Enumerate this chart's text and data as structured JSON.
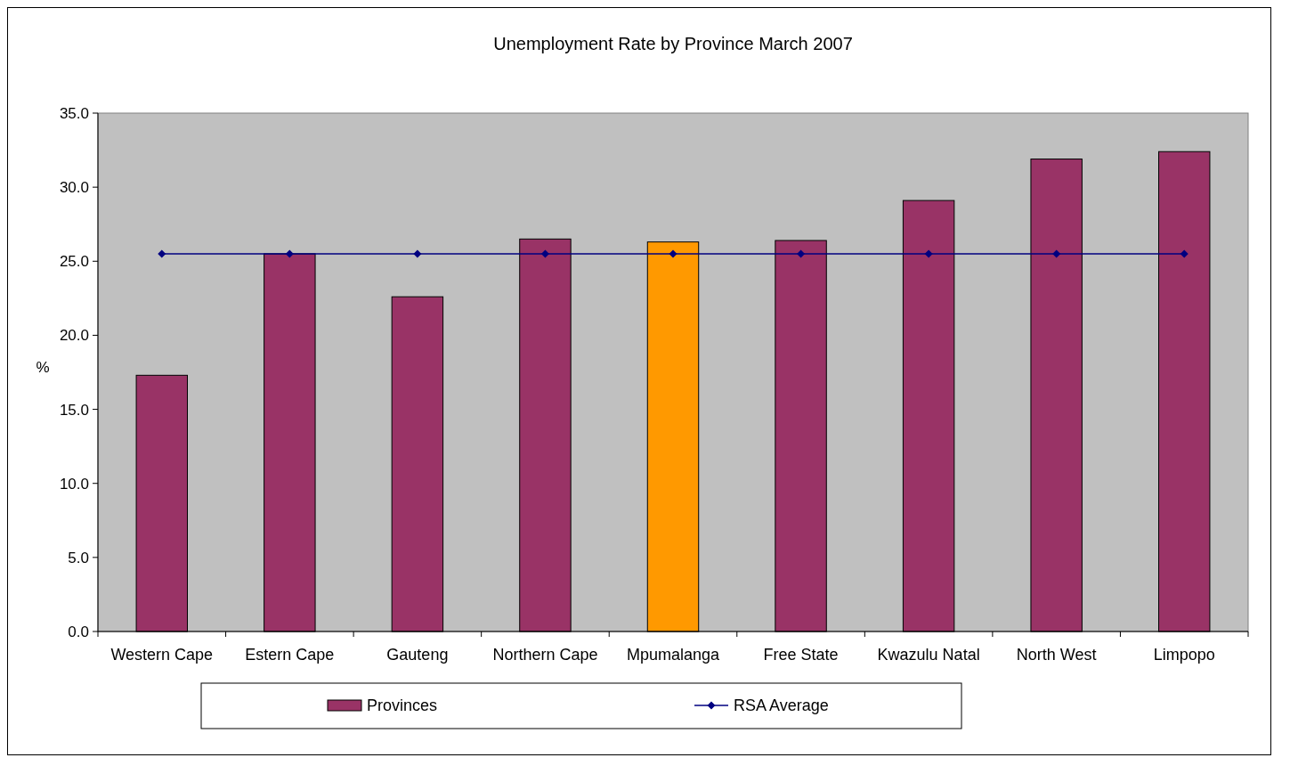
{
  "chart_data": {
    "type": "bar",
    "title": "Unemployment Rate by Province March 2007",
    "ylabel": "%",
    "categories": [
      "Western Cape",
      "Estern Cape",
      "Gauteng",
      "Northern Cape",
      "Mpumalanga",
      "Free State",
      "Kwazulu Natal",
      "North West",
      "Limpopo"
    ],
    "series": [
      {
        "name": "Provinces",
        "color": "#993366",
        "colors": [
          "#993366",
          "#993366",
          "#993366",
          "#993366",
          "#ff9900",
          "#993366",
          "#993366",
          "#993366",
          "#993366"
        ],
        "values": [
          17.3,
          25.5,
          22.6,
          26.5,
          26.3,
          26.4,
          29.1,
          31.9,
          32.4
        ]
      },
      {
        "name": "RSA Average",
        "type": "line",
        "color": "#000080",
        "marker": "diamond",
        "values": [
          25.5,
          25.5,
          25.5,
          25.5,
          25.5,
          25.5,
          25.5,
          25.5,
          25.5
        ]
      }
    ],
    "ylim": [
      0,
      35
    ],
    "yticks": [
      {
        "value": 0,
        "label": "0.0"
      },
      {
        "value": 5,
        "label": "5.0"
      },
      {
        "value": 10,
        "label": "10.0"
      },
      {
        "value": 15,
        "label": "15.0"
      },
      {
        "value": 20,
        "label": "20.0"
      },
      {
        "value": 25,
        "label": "25.0"
      },
      {
        "value": 30,
        "label": "30.0"
      },
      {
        "value": 35,
        "label": "35.0"
      }
    ],
    "grid": false,
    "legend": "bottom"
  }
}
